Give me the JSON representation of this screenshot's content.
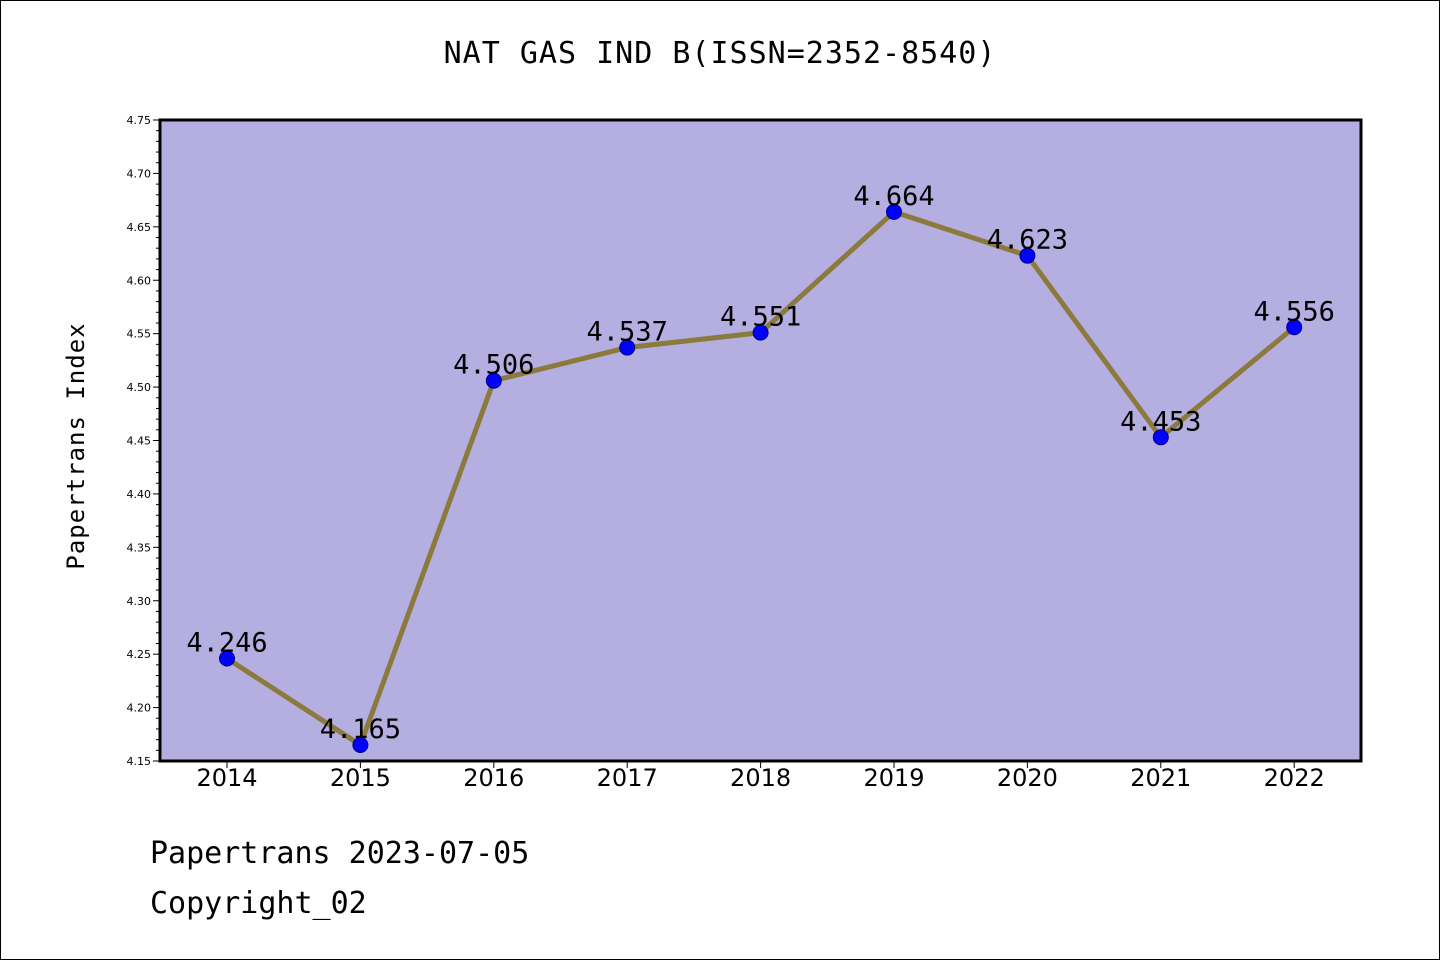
{
  "chart_data": {
    "type": "line",
    "title": "NAT GAS IND B(ISSN=2352-8540)",
    "xlabel": "",
    "ylabel": "Papertrans Index",
    "categories": [
      "2014",
      "2015",
      "2016",
      "2017",
      "2018",
      "2019",
      "2020",
      "2021",
      "2022"
    ],
    "series": [
      {
        "values": [
          4.246,
          4.165,
          4.506,
          4.537,
          4.551,
          4.664,
          4.623,
          4.453,
          4.556
        ]
      }
    ],
    "data_labels": [
      "4.246",
      "4.165",
      "4.506",
      "4.537",
      "4.551",
      "4.664",
      "4.623",
      "4.453",
      "4.556"
    ],
    "ylim": [
      4.15,
      4.75
    ],
    "yticks": [
      "4.15",
      "4.20",
      "4.25",
      "4.30",
      "4.35",
      "4.40",
      "4.45",
      "4.50",
      "4.55",
      "4.60",
      "4.65",
      "4.70",
      "4.75"
    ],
    "grid": false,
    "legend": "none",
    "colors": {
      "plot_background": "#b4aee1",
      "line": "#8b7a3c",
      "marker": "#0000ff"
    }
  },
  "footer": {
    "date_text": "Papertrans 2023-07-05",
    "copyright_text": "Copyright_02"
  }
}
